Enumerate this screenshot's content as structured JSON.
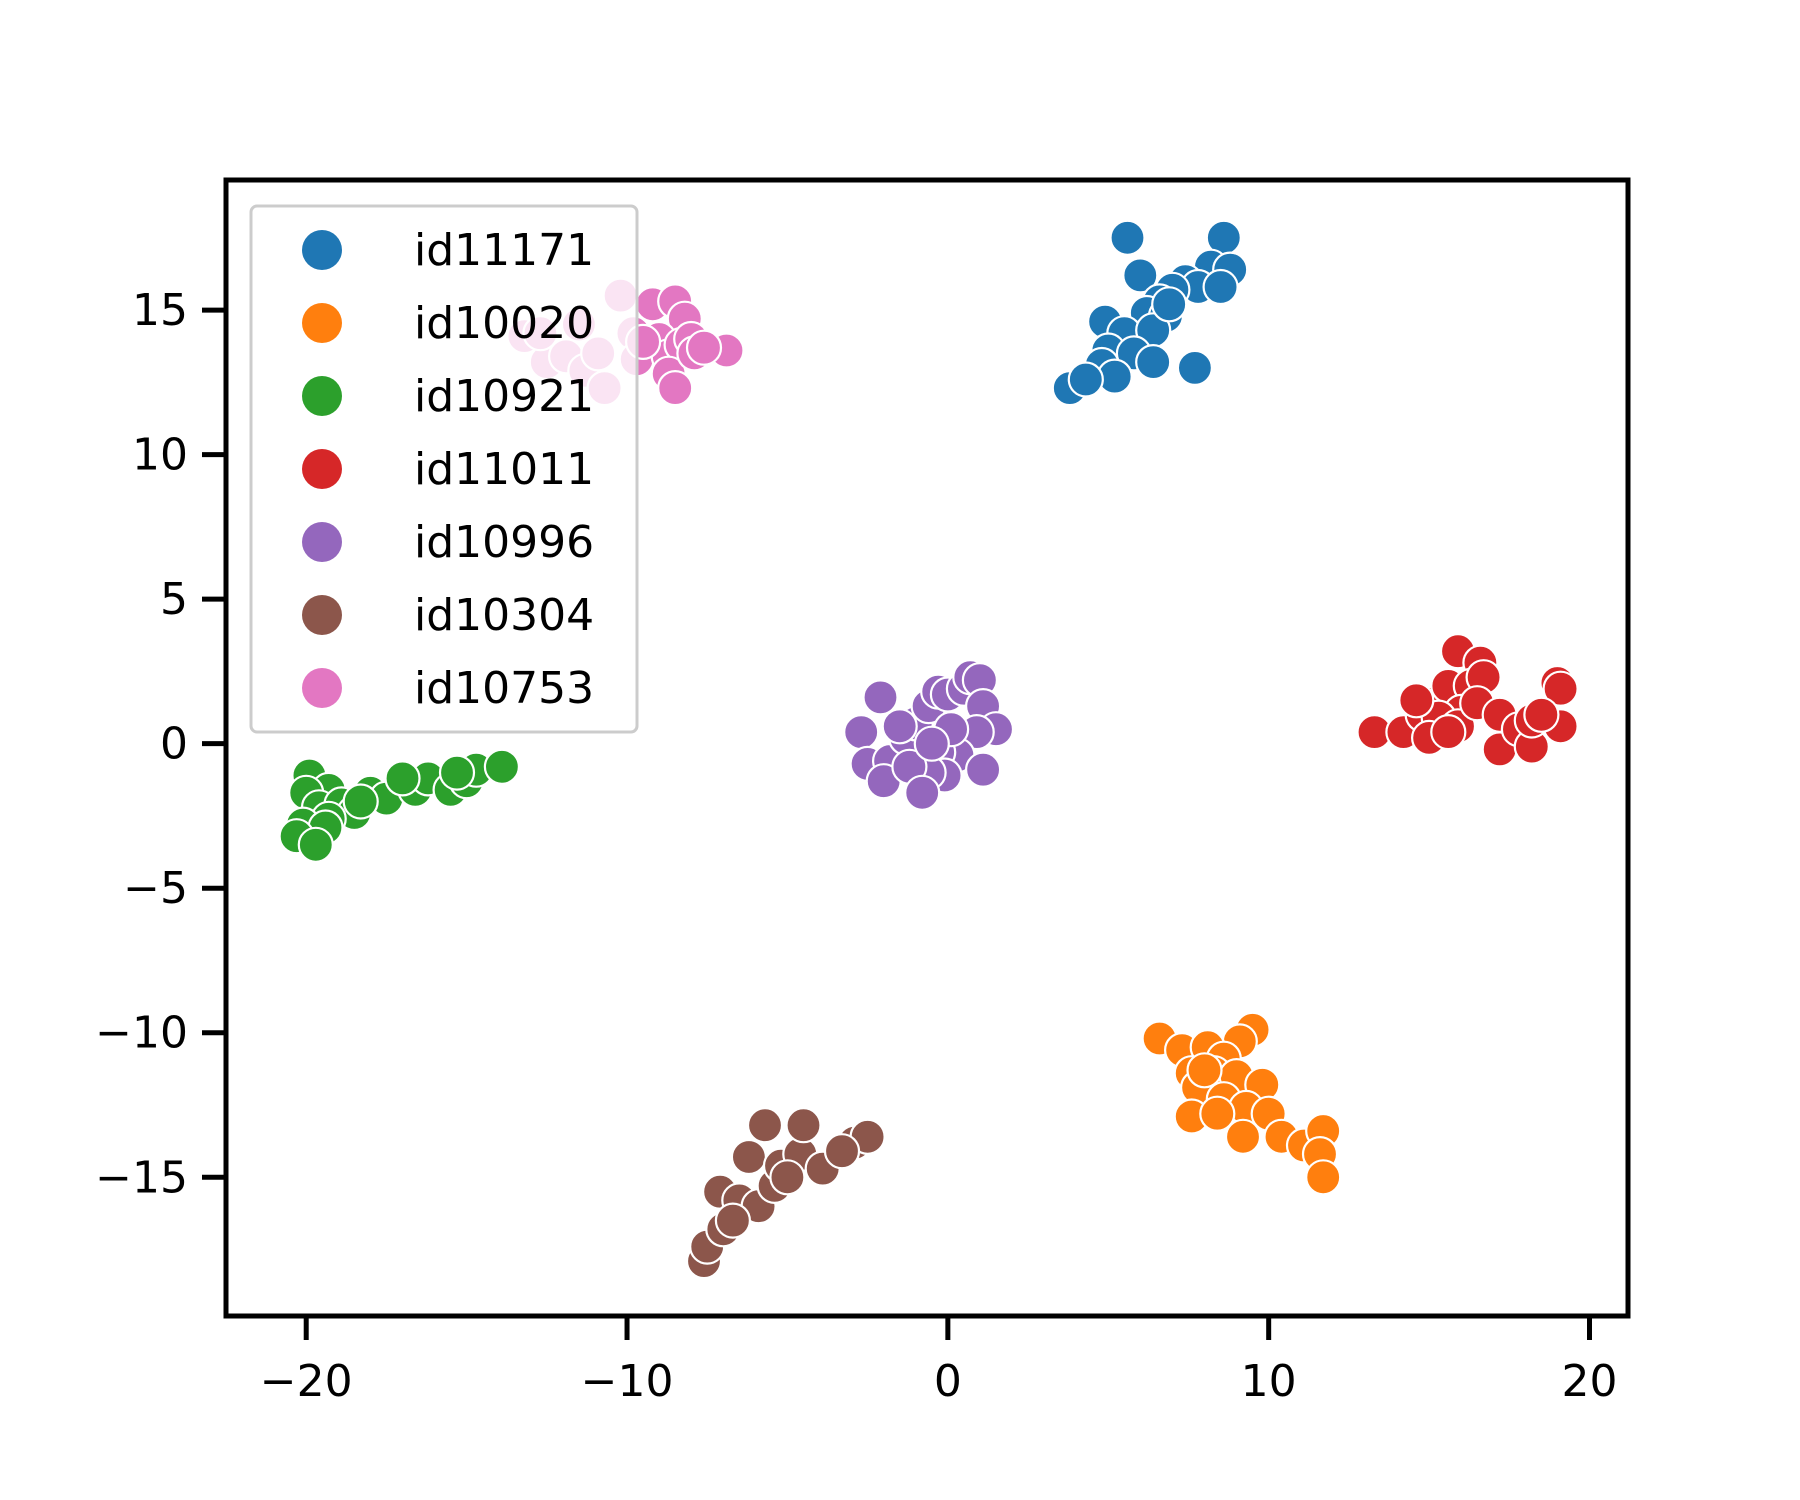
{
  "chart_data": {
    "type": "scatter",
    "title": "",
    "xlabel": "",
    "ylabel": "",
    "xlim": [
      -22.5,
      21.2
    ],
    "ylim": [
      -19.8,
      19.5
    ],
    "xticks": [
      -20,
      -10,
      0,
      10,
      20
    ],
    "yticks": [
      -15,
      -10,
      -5,
      0,
      5,
      10,
      15
    ],
    "xtick_labels": [
      "−20",
      "−10",
      "0",
      "10",
      "20"
    ],
    "ytick_labels": [
      "−15",
      "−10",
      "−5",
      "0",
      "5",
      "10",
      "15"
    ],
    "grid": false,
    "legend_position": "top-left",
    "series": [
      {
        "name": "id11171",
        "color": "#1f77b4",
        "points": [
          [
            5.6,
            17.5
          ],
          [
            8.6,
            17.5
          ],
          [
            6.0,
            16.2
          ],
          [
            8.2,
            16.5
          ],
          [
            8.8,
            16.4
          ],
          [
            7.4,
            16.0
          ],
          [
            7.8,
            15.8
          ],
          [
            7.0,
            15.7
          ],
          [
            8.5,
            15.8
          ],
          [
            6.6,
            15.3
          ],
          [
            6.2,
            14.9
          ],
          [
            6.8,
            14.8
          ],
          [
            4.9,
            14.6
          ],
          [
            5.5,
            14.2
          ],
          [
            6.4,
            14.3
          ],
          [
            5.0,
            13.6
          ],
          [
            5.8,
            13.5
          ],
          [
            4.8,
            13.1
          ],
          [
            6.4,
            13.2
          ],
          [
            7.7,
            13.0
          ],
          [
            5.2,
            12.7
          ],
          [
            3.8,
            12.3
          ],
          [
            4.3,
            12.6
          ],
          [
            6.9,
            15.2
          ]
        ]
      },
      {
        "name": "id10020",
        "color": "#ff7f0e",
        "points": [
          [
            6.6,
            -10.2
          ],
          [
            9.5,
            -9.9
          ],
          [
            9.1,
            -10.3
          ],
          [
            7.3,
            -10.6
          ],
          [
            8.1,
            -10.5
          ],
          [
            8.6,
            -10.9
          ],
          [
            7.6,
            -11.4
          ],
          [
            8.3,
            -11.4
          ],
          [
            9.0,
            -11.5
          ],
          [
            9.8,
            -11.8
          ],
          [
            7.8,
            -11.9
          ],
          [
            8.6,
            -12.3
          ],
          [
            9.3,
            -12.6
          ],
          [
            7.6,
            -12.9
          ],
          [
            8.4,
            -12.8
          ],
          [
            10.0,
            -12.8
          ],
          [
            9.2,
            -13.6
          ],
          [
            10.4,
            -13.6
          ],
          [
            11.1,
            -13.9
          ],
          [
            11.7,
            -13.4
          ],
          [
            11.6,
            -14.2
          ],
          [
            11.7,
            -15.0
          ],
          [
            8.0,
            -11.3
          ]
        ]
      },
      {
        "name": "id10921",
        "color": "#2ca02c",
        "points": [
          [
            -19.9,
            -1.1
          ],
          [
            -19.3,
            -1.6
          ],
          [
            -20.0,
            -1.7
          ],
          [
            -19.6,
            -2.2
          ],
          [
            -18.9,
            -2.1
          ],
          [
            -18.5,
            -2.4
          ],
          [
            -19.3,
            -2.6
          ],
          [
            -20.1,
            -2.8
          ],
          [
            -19.4,
            -2.9
          ],
          [
            -20.3,
            -3.2
          ],
          [
            -19.7,
            -3.5
          ],
          [
            -18.0,
            -1.7
          ],
          [
            -17.5,
            -1.9
          ],
          [
            -16.6,
            -1.6
          ],
          [
            -16.2,
            -1.2
          ],
          [
            -15.5,
            -1.6
          ],
          [
            -15.0,
            -1.3
          ],
          [
            -14.7,
            -0.9
          ],
          [
            -15.3,
            -1.0
          ],
          [
            -13.9,
            -0.8
          ],
          [
            -17.0,
            -1.2
          ],
          [
            -18.3,
            -2.0
          ]
        ]
      },
      {
        "name": "id11011",
        "color": "#d62728",
        "points": [
          [
            13.3,
            0.4
          ],
          [
            14.2,
            0.4
          ],
          [
            14.8,
            1.0
          ],
          [
            15.2,
            1.4
          ],
          [
            15.6,
            2.0
          ],
          [
            15.9,
            3.2
          ],
          [
            16.6,
            2.8
          ],
          [
            16.3,
            2.0
          ],
          [
            16.7,
            2.3
          ],
          [
            16.0,
            1.1
          ],
          [
            15.3,
            0.9
          ],
          [
            15.0,
            0.2
          ],
          [
            15.9,
            0.6
          ],
          [
            16.5,
            1.4
          ],
          [
            17.2,
            1.0
          ],
          [
            17.2,
            -0.2
          ],
          [
            17.8,
            0.5
          ],
          [
            18.2,
            -0.1
          ],
          [
            18.2,
            0.8
          ],
          [
            19.0,
            2.1
          ],
          [
            19.1,
            1.9
          ],
          [
            19.1,
            0.6
          ],
          [
            18.5,
            1.0
          ],
          [
            14.6,
            1.5
          ],
          [
            15.6,
            0.4
          ]
        ]
      },
      {
        "name": "id10996",
        "color": "#9467bd",
        "points": [
          [
            -2.1,
            1.6
          ],
          [
            -2.7,
            0.4
          ],
          [
            -2.5,
            -0.7
          ],
          [
            -1.8,
            -0.6
          ],
          [
            -2.0,
            -1.3
          ],
          [
            -1.3,
            0.2
          ],
          [
            -1.0,
            0.7
          ],
          [
            -0.6,
            1.3
          ],
          [
            -0.3,
            1.8
          ],
          [
            0.0,
            1.7
          ],
          [
            0.5,
            1.9
          ],
          [
            0.7,
            2.3
          ],
          [
            1.0,
            2.2
          ],
          [
            1.1,
            1.3
          ],
          [
            1.5,
            0.5
          ],
          [
            0.9,
            0.4
          ],
          [
            0.3,
            -0.4
          ],
          [
            -0.3,
            -0.3
          ],
          [
            -0.1,
            -1.1
          ],
          [
            -0.6,
            -1.0
          ],
          [
            -1.2,
            -0.8
          ],
          [
            -0.8,
            -1.7
          ],
          [
            -1.5,
            0.6
          ],
          [
            1.1,
            -0.9
          ],
          [
            0.1,
            0.5
          ],
          [
            -0.5,
            0.0
          ]
        ]
      },
      {
        "name": "id10304",
        "color": "#8c564b",
        "points": [
          [
            -7.6,
            -17.9
          ],
          [
            -7.5,
            -17.4
          ],
          [
            -7.0,
            -16.8
          ],
          [
            -7.1,
            -15.5
          ],
          [
            -6.5,
            -15.8
          ],
          [
            -5.9,
            -16.0
          ],
          [
            -6.2,
            -14.3
          ],
          [
            -5.4,
            -15.3
          ],
          [
            -5.2,
            -14.6
          ],
          [
            -4.6,
            -14.2
          ],
          [
            -5.7,
            -13.2
          ],
          [
            -4.5,
            -13.2
          ],
          [
            -3.9,
            -14.7
          ],
          [
            -2.9,
            -13.8
          ],
          [
            -2.5,
            -13.6
          ],
          [
            -3.3,
            -14.1
          ],
          [
            -5.0,
            -15.0
          ],
          [
            -6.7,
            -16.5
          ]
        ]
      },
      {
        "name": "id10753",
        "color": "#e377c2",
        "points": [
          [
            -13.2,
            14.1
          ],
          [
            -12.5,
            13.2
          ],
          [
            -11.9,
            13.4
          ],
          [
            -11.3,
            12.9
          ],
          [
            -10.7,
            12.3
          ],
          [
            -10.2,
            15.5
          ],
          [
            -9.8,
            14.2
          ],
          [
            -9.7,
            13.3
          ],
          [
            -9.2,
            15.2
          ],
          [
            -8.5,
            15.3
          ],
          [
            -8.2,
            14.7
          ],
          [
            -9.0,
            14.0
          ],
          [
            -8.7,
            13.4
          ],
          [
            -8.3,
            13.8
          ],
          [
            -8.0,
            14.0
          ],
          [
            -8.7,
            12.8
          ],
          [
            -8.5,
            12.3
          ],
          [
            -7.9,
            13.5
          ],
          [
            -6.9,
            13.6
          ],
          [
            -11.5,
            14.5
          ],
          [
            -10.9,
            13.5
          ],
          [
            -12.7,
            14.2
          ],
          [
            -7.6,
            13.7
          ],
          [
            -9.5,
            13.9
          ]
        ]
      }
    ]
  }
}
